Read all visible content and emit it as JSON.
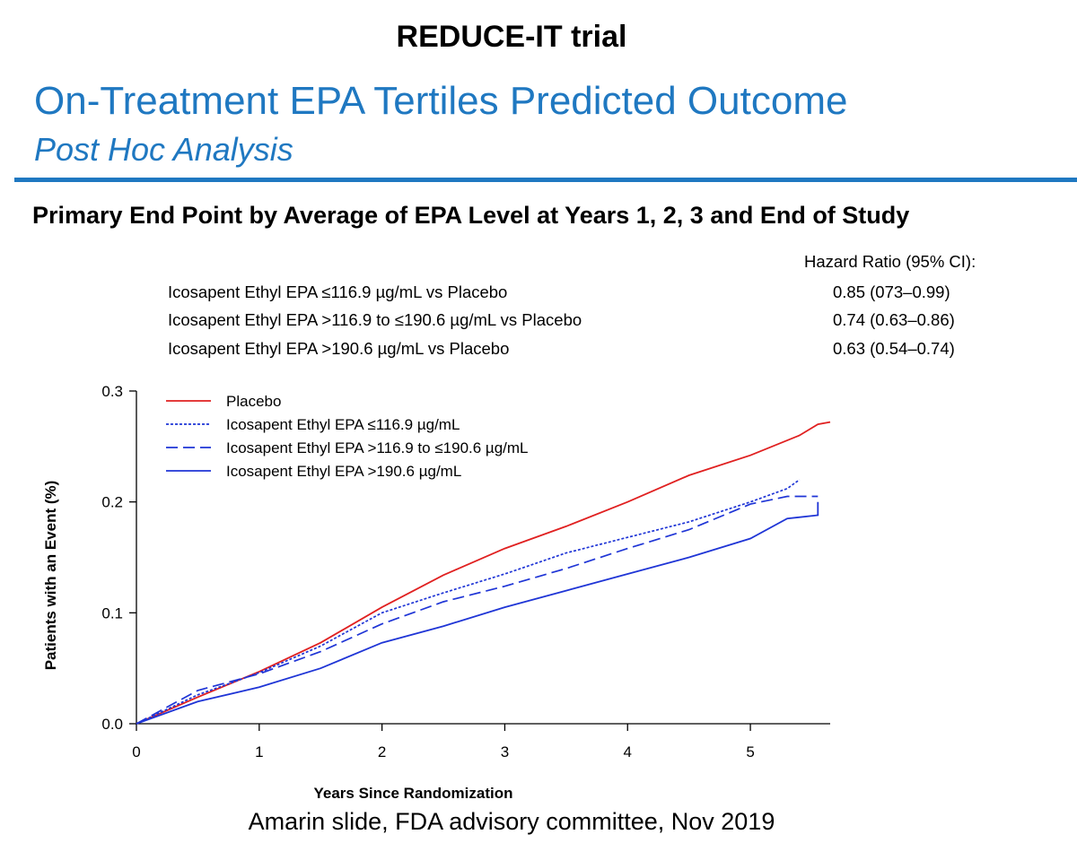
{
  "header": {
    "top_title": "REDUCE-IT trial",
    "slide_title": "On-Treatment EPA Tertiles Predicted Outcome",
    "slide_subtitle": "Post Hoc Analysis",
    "chart_heading": "Primary End Point by Average of EPA Level at Years 1, 2, 3 and End of Study"
  },
  "hazard_table": {
    "header": "Hazard Ratio (95% CI):",
    "rows": [
      {
        "label": "Icosapent Ethyl EPA ≤116.9 µg/mL vs Placebo",
        "value": "0.85 (073–0.99)"
      },
      {
        "label": "Icosapent Ethyl EPA >116.9 to ≤190.6 µg/mL vs Placebo",
        "value": "0.74 (0.63–0.86)"
      },
      {
        "label": "Icosapent Ethyl EPA >190.6 µg/mL vs Placebo",
        "value": "0.63 (0.54–0.74)"
      }
    ]
  },
  "footer": {
    "note": "Amarin slide, FDA advisory committee, Nov 2019"
  },
  "colors": {
    "title_blue": "#1f78c1",
    "placebo": "#e02020",
    "treatment": "#1f35d6"
  },
  "chart_data": {
    "type": "line",
    "xlabel": "Years Since Randomization",
    "ylabel": "Patients with an Event (%)",
    "xlim": [
      0,
      5.65
    ],
    "ylim": [
      0,
      0.3
    ],
    "x_ticks": [
      "0",
      "1",
      "2",
      "3",
      "4",
      "5"
    ],
    "y_ticks": [
      "0.0",
      "0.1",
      "0.2",
      "0.3"
    ],
    "legend_position": "top-left",
    "series": [
      {
        "name": "Placebo",
        "style": "solid",
        "color": "#e02020",
        "x": [
          0,
          0.5,
          1,
          1.5,
          2,
          2.5,
          3,
          3.5,
          4,
          4.5,
          5,
          5.4,
          5.55,
          5.65
        ],
        "y": [
          0,
          0.024,
          0.047,
          0.073,
          0.105,
          0.134,
          0.158,
          0.178,
          0.2,
          0.224,
          0.242,
          0.26,
          0.27,
          0.272
        ]
      },
      {
        "name": "Icosapent Ethyl EPA ≤116.9 µg/mL",
        "style": "dotted",
        "color": "#1f35d6",
        "x": [
          0,
          0.5,
          1,
          1.5,
          2,
          2.5,
          3,
          3.5,
          4,
          4.5,
          5,
          5.3,
          5.4
        ],
        "y": [
          0,
          0.026,
          0.046,
          0.07,
          0.1,
          0.118,
          0.135,
          0.154,
          0.168,
          0.182,
          0.2,
          0.212,
          0.22
        ]
      },
      {
        "name": "Icosapent Ethyl EPA >116.9 to ≤190.6 µg/mL",
        "style": "dashed",
        "color": "#1f35d6",
        "x": [
          0,
          0.5,
          1,
          1.5,
          2,
          2.5,
          3,
          3.5,
          4,
          4.5,
          5,
          5.3,
          5.55
        ],
        "y": [
          0,
          0.03,
          0.045,
          0.065,
          0.09,
          0.11,
          0.124,
          0.14,
          0.158,
          0.175,
          0.198,
          0.205,
          0.205
        ]
      },
      {
        "name": "Icosapent Ethyl EPA >190.6 µg/mL",
        "style": "solid",
        "color": "#1f35d6",
        "x": [
          0,
          0.5,
          1,
          1.5,
          2,
          2.5,
          3,
          3.5,
          4,
          4.5,
          5,
          5.3,
          5.55,
          5.55
        ],
        "y": [
          0,
          0.02,
          0.033,
          0.05,
          0.073,
          0.088,
          0.105,
          0.12,
          0.135,
          0.15,
          0.167,
          0.185,
          0.188,
          0.2
        ]
      }
    ]
  }
}
